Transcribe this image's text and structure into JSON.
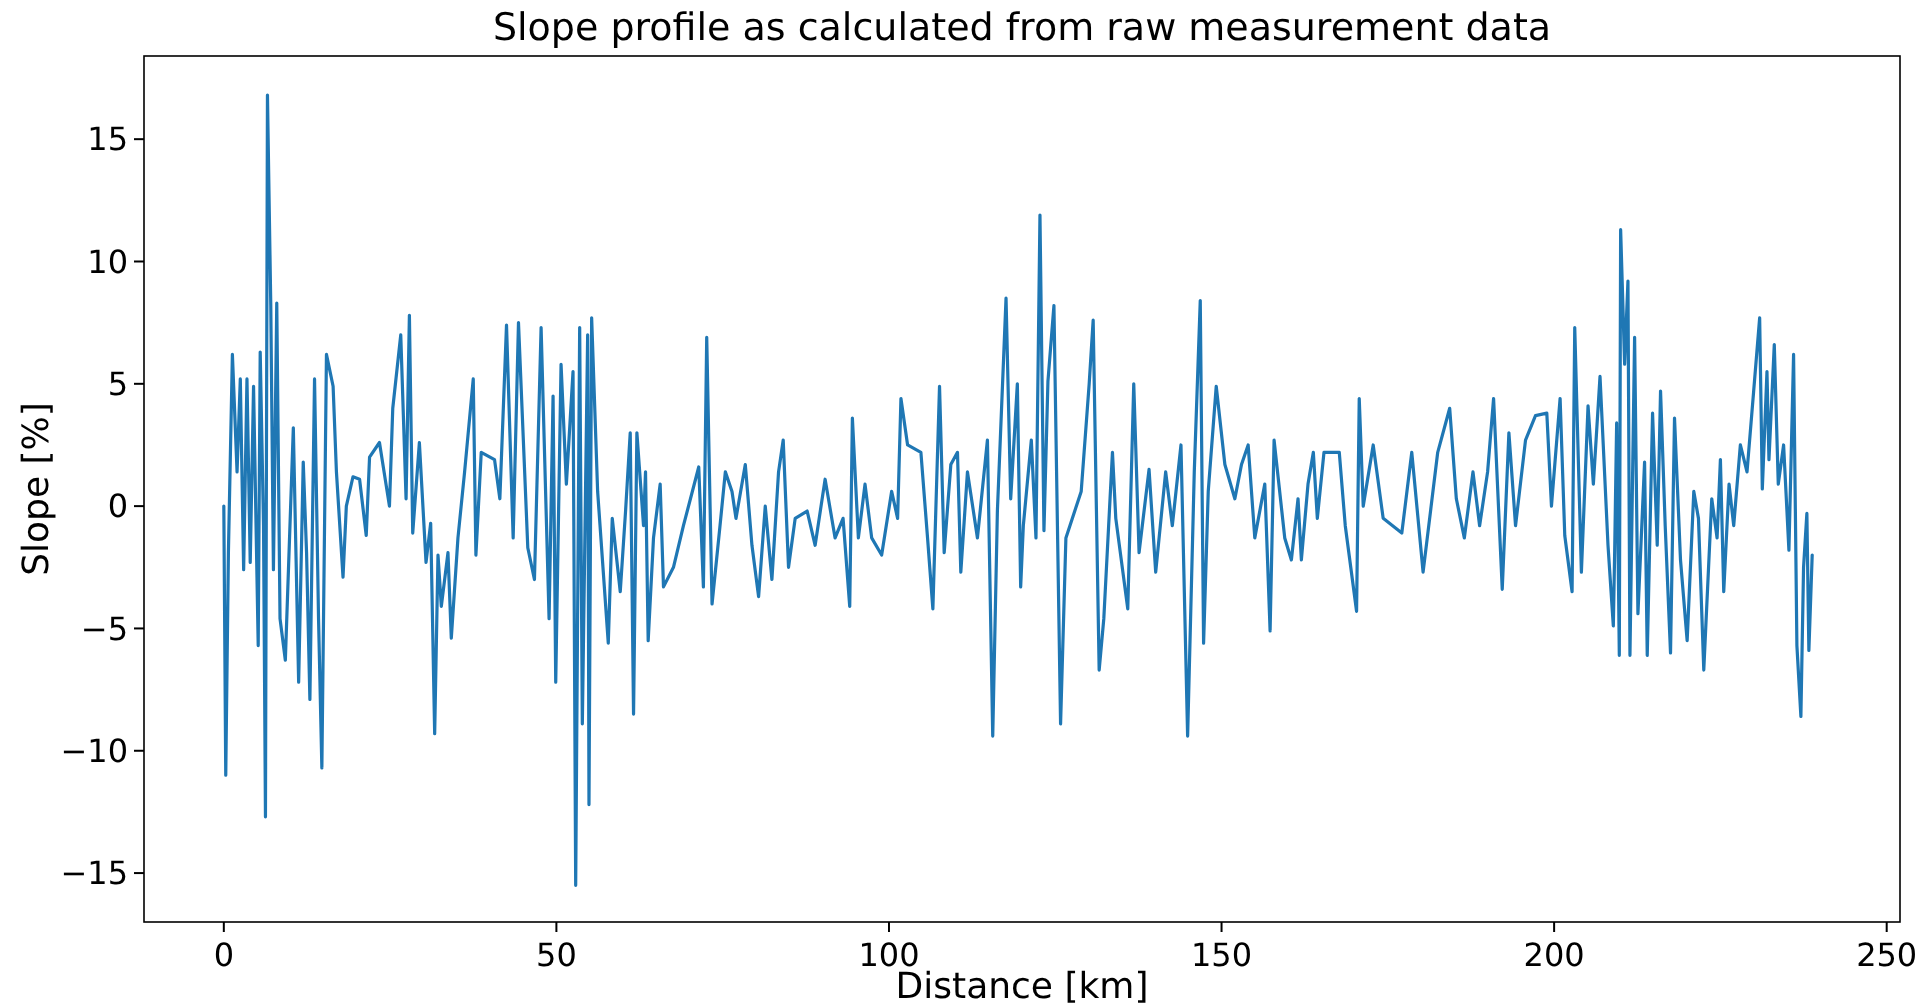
{
  "chart_data": {
    "type": "line",
    "title": "Slope profile as calculated from raw measurement data",
    "xlabel": "Distance [km]",
    "ylabel": "Slope [%]",
    "xlim": [
      -12,
      252
    ],
    "xticks": [
      0,
      50,
      100,
      150,
      200,
      250
    ],
    "ylim": [
      -17.0,
      18.4
    ],
    "yticks": [
      -15,
      -10,
      -5,
      0,
      5,
      10,
      15
    ],
    "grid": false,
    "series": [
      {
        "color": "#1f77b4",
        "x": [
          0,
          0.29,
          0.69,
          1.29,
          1.99,
          2.48,
          2.98,
          3.48,
          3.97,
          4.47,
          5.17,
          5.47,
          5.97,
          6.26,
          6.56,
          7.06,
          7.46,
          7.96,
          8.45,
          9.25,
          10.45,
          11.25,
          11.94,
          12.44,
          12.94,
          13.64,
          14.24,
          14.74,
          15.43,
          16.43,
          16.93,
          17.92,
          18.42,
          19.42,
          20.41,
          21.41,
          21.91,
          23.4,
          24.9,
          25.4,
          26.6,
          27.4,
          27.9,
          28.4,
          29.4,
          30.4,
          31.1,
          31.7,
          32.2,
          32.7,
          33.7,
          34.2,
          35.2,
          36.2,
          37.5,
          37.9,
          38.7,
          40.7,
          41.5,
          42.5,
          43.5,
          44.3,
          45.7,
          46.7,
          47.7,
          48.9,
          49.5,
          49.9,
          50.7,
          51.5,
          52.5,
          52.9,
          53.5,
          53.9,
          54.7,
          54.9,
          55.3,
          56.2,
          57.8,
          58.4,
          59.6,
          60.4,
          61.1,
          61.6,
          62.1,
          63.1,
          63.4,
          63.8,
          64.6,
          65.6,
          66.1,
          67.6,
          69.1,
          71.4,
          72.1,
          72.6,
          73.4,
          74.6,
          75.4,
          76.4,
          77.0,
          78.4,
          79.4,
          80.4,
          81.4,
          82.4,
          83.4,
          84.1,
          84.9,
          85.9,
          87.7,
          88.9,
          90.4,
          91.9,
          93.1,
          94.1,
          94.5,
          95.4,
          96.4,
          97.4,
          98.9,
          100.4,
          101.3,
          101.8,
          102.8,
          104.8,
          105.8,
          106.6,
          107.6,
          108.3,
          109.3,
          110.3,
          110.8,
          111.8,
          113.3,
          114.8,
          115.6,
          116.3,
          117.6,
          118.3,
          119.3,
          119.8,
          120.2,
          121.4,
          122.1,
          122.7,
          123.3,
          123.9,
          124.8,
          125.8,
          126.6,
          128.9,
          130.1,
          130.7,
          131.6,
          132.3,
          133.6,
          134.1,
          135.9,
          136.8,
          137.6,
          139.1,
          140.1,
          141.6,
          142.6,
          143.9,
          144.9,
          145.9,
          146.8,
          147.3,
          148.0,
          149.2,
          150.5,
          152.0,
          153.0,
          154.0,
          155.0,
          156.5,
          157.3,
          157.9,
          159.5,
          160.5,
          161.5,
          162.0,
          163.0,
          163.8,
          164.4,
          165.4,
          167.7,
          168.6,
          170.3,
          170.7,
          171.3,
          172.8,
          174.3,
          177.1,
          178.6,
          180.3,
          182.5,
          184.3,
          185.3,
          186.5,
          187.8,
          188.8,
          190.0,
          190.9,
          192.2,
          193.2,
          194.2,
          195.7,
          197.2,
          198.9,
          199.6,
          200.9,
          201.6,
          202.7,
          203.1,
          204.1,
          205.1,
          205.9,
          206.9,
          208.1,
          208.9,
          209.1,
          209.4,
          209.8,
          210.0,
          210.6,
          211.1,
          211.4,
          212.1,
          212.6,
          213.6,
          214.0,
          214.8,
          215.5,
          216.0,
          216.7,
          217.5,
          218.1,
          219.0,
          220.0,
          221.0,
          221.7,
          222.5,
          223.7,
          224.5,
          225.0,
          225.5,
          226.3,
          227.0,
          228.0,
          229.0,
          230.0,
          230.9,
          231.3,
          232.0,
          232.3,
          233.1,
          233.7,
          234.5,
          235.3,
          236.0,
          236.5,
          237.1,
          237.5,
          238.0,
          238.3,
          238.8
        ],
        "values": [
          0,
          -11.0,
          -1.9,
          6.2,
          1.4,
          5.2,
          -2.6,
          5.2,
          -2.3,
          4.9,
          -5.7,
          6.3,
          -0.8,
          -12.7,
          16.8,
          8.2,
          -2.6,
          8.3,
          -4.6,
          -6.3,
          3.2,
          -7.2,
          1.8,
          -1.9,
          -7.9,
          5.2,
          -4.6,
          -10.7,
          6.2,
          4.9,
          1.4,
          -2.9,
          0,
          1.2,
          1.1,
          -1.2,
          2.0,
          2.6,
          0,
          4.0,
          7.0,
          0.3,
          7.8,
          -1.1,
          2.6,
          -2.3,
          -0.7,
          -9.3,
          -2.0,
          -4.1,
          -1.9,
          -5.4,
          -1.3,
          1.4,
          5.2,
          -2.0,
          2.2,
          1.9,
          0.3,
          7.4,
          -1.3,
          7.5,
          -1.7,
          -3.0,
          7.3,
          -4.6,
          4.5,
          -7.2,
          5.8,
          0.9,
          5.5,
          -15.5,
          7.3,
          -8.9,
          7.0,
          -12.2,
          7.7,
          0.6,
          -5.6,
          -0.5,
          -3.5,
          -0.2,
          3.0,
          -8.5,
          3.0,
          -0.8,
          1.4,
          -5.5,
          -1.3,
          0.9,
          -3.3,
          -2.5,
          -0.8,
          1.6,
          -3.3,
          6.9,
          -4.0,
          -0.8,
          1.4,
          0.6,
          -0.5,
          1.7,
          -1.6,
          -3.7,
          0,
          -3.0,
          1.4,
          2.7,
          -2.5,
          -0.5,
          -0.2,
          -1.6,
          1.1,
          -1.3,
          -0.5,
          -4.1,
          3.6,
          -1.3,
          0.9,
          -1.3,
          -2.0,
          0.6,
          -0.5,
          4.4,
          2.5,
          2.2,
          -1.3,
          -4.2,
          4.9,
          -1.9,
          1.7,
          2.2,
          -2.7,
          1.4,
          -1.3,
          2.7,
          -9.4,
          -0.2,
          8.5,
          0.3,
          5.0,
          -3.3,
          -0.8,
          2.7,
          -1.3,
          11.9,
          -1.0,
          5.1,
          8.2,
          -8.9,
          -1.3,
          0.6,
          5.0,
          7.6,
          -6.7,
          -4.6,
          2.2,
          -0.5,
          -4.2,
          5.0,
          -1.9,
          1.5,
          -2.7,
          1.4,
          -0.8,
          2.5,
          -9.4,
          1.4,
          8.4,
          -5.6,
          0.6,
          4.9,
          1.7,
          0.3,
          1.7,
          2.5,
          -1.3,
          0.9,
          -5.1,
          2.7,
          -1.3,
          -2.2,
          0.3,
          -2.2,
          0.9,
          2.2,
          -0.5,
          2.2,
          2.2,
          -0.8,
          -4.3,
          4.4,
          0,
          2.5,
          -0.5,
          -1.1,
          2.2,
          -2.7,
          2.2,
          4.0,
          0.3,
          -1.3,
          1.4,
          -0.8,
          1.4,
          4.4,
          -3.4,
          3.0,
          -0.8,
          2.7,
          3.7,
          3.8,
          0,
          4.4,
          -1.2,
          -3.5,
          7.3,
          -2.7,
          4.1,
          0.9,
          5.3,
          -1.6,
          -4.9,
          -1.9,
          3.4,
          -6.1,
          11.3,
          5.8,
          9.2,
          -6.1,
          6.9,
          -4.4,
          1.8,
          -6.1,
          3.8,
          -1.6,
          4.7,
          -0.8,
          -6.0,
          3.6,
          -2.2,
          -5.5,
          0.6,
          -0.5,
          -6.7,
          0.3,
          -1.3,
          1.9,
          -3.5,
          0.9,
          -0.8,
          2.5,
          1.4,
          4.7,
          7.7,
          0.7,
          5.5,
          1.9,
          6.6,
          0.9,
          2.5,
          -1.8,
          6.2,
          -5.7,
          -8.6,
          -2.5,
          -0.3,
          -5.9,
          -2.0
        ]
      }
    ]
  }
}
